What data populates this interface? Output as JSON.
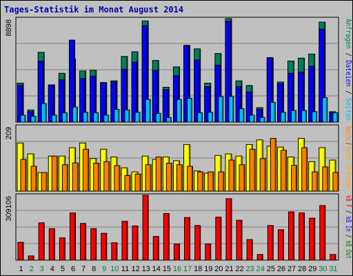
{
  "title": "Tages-Statistik im Monat August 2014",
  "colors": {
    "anfragen": "#00805c",
    "dateien": "#0000ff",
    "seiten": "#00c0ff",
    "rechner": "#ffff00",
    "besuche": "#ff8000",
    "kbin": "#ff0000",
    "kbout": "#00c000",
    "panel_bg": "#c0c0c0",
    "weekend": "#008040",
    "weekday": "#000000"
  },
  "side_labels": {
    "top": [
      {
        "text": "Anfragen",
        "color": "#00805c"
      },
      {
        "text": " / ",
        "color": "#000000"
      },
      {
        "text": "Dateien",
        "color": "#0000ff"
      },
      {
        "text": " / ",
        "color": "#000000"
      },
      {
        "text": "Seiten",
        "color": "#00c0ff"
      }
    ],
    "middle": [
      {
        "text": "Besuche",
        "color": "#ff8000"
      },
      {
        "text": " / ",
        "color": "#000000"
      },
      {
        "text": "Rechner (IP-Adressen)",
        "color": "#ffa500"
      }
    ],
    "bottom": [
      {
        "text": "kB F",
        "color": "#ff0000"
      },
      {
        "text": " / ",
        "color": "#000000"
      },
      {
        "text": "kB In",
        "color": "#0000ff"
      },
      {
        "text": " / ",
        "color": "#000000"
      },
      {
        "text": "kB Out",
        "color": "#008000"
      }
    ]
  },
  "chart_data": {
    "type": "bar",
    "categories": [
      "1",
      "2",
      "3",
      "4",
      "5",
      "6",
      "7",
      "8",
      "9",
      "10",
      "11",
      "12",
      "13",
      "14",
      "15",
      "16",
      "17",
      "18",
      "19",
      "20",
      "21",
      "22",
      "23",
      "24",
      "25",
      "26",
      "27",
      "28",
      "29",
      "30",
      "31"
    ],
    "weekend_days": [
      "2",
      "3",
      "9",
      "10",
      "16",
      "17",
      "23",
      "24",
      "30",
      "31"
    ],
    "panels": [
      {
        "id": "hits",
        "ymax_label": "8898",
        "ymax": 8898,
        "series": [
          {
            "name": "Anfragen",
            "values": [
              3350,
              1050,
              6000,
              3200,
              4200,
              5400,
              4400,
              4450,
              3400,
              3550,
              5650,
              6050,
              8700,
              5300,
              3000,
              4750,
              6600,
              6300,
              3350,
              5900,
              8898,
              3550,
              3150,
              1250,
              5500,
              3450,
              5250,
              5500,
              5850,
              8600,
              900
            ]
          },
          {
            "name": "Dateien",
            "values": [
              3150,
              900,
              5250,
              3150,
              3650,
              7050,
              3750,
              3950,
              3400,
              3450,
              4550,
              5150,
              8300,
              4450,
              2800,
              4000,
              6550,
              5350,
              3050,
              4900,
              8650,
              3050,
              2600,
              1100,
              5550,
              3300,
              4200,
              4300,
              4800,
              8000,
              800
            ]
          },
          {
            "name": "Seiten",
            "values": [
              600,
              500,
              1600,
              600,
              800,
              1300,
              850,
              800,
              600,
              1100,
              1050,
              850,
              1950,
              750,
              400,
              1950,
              2050,
              800,
              850,
              2200,
              2200,
              1150,
              600,
              400,
              1700,
              850,
              1000,
              1000,
              900,
              2100,
              800
            ]
          }
        ]
      },
      {
        "id": "visits",
        "ymax_label": "209",
        "ymax": 209,
        "series": [
          {
            "name": "Rechner",
            "values": [
              155,
              120,
              60,
              113,
              113,
              140,
              155,
              105,
              135,
              110,
              75,
              62,
              113,
              102,
              110,
              98,
              150,
              65,
              58,
              115,
              120,
              113,
              150,
              165,
              145,
              142,
              110,
              170,
              95,
              140,
              100
            ]
          },
          {
            "name": "Besuche",
            "values": [
              102,
              80,
              60,
              113,
              85,
              91,
              135,
              90,
              95,
              82,
              50,
              55,
              85,
              110,
              90,
              85,
              80,
              62,
              62,
              62,
              100,
              85,
              135,
              105,
              170,
              132,
              83,
              140,
              62,
              78,
              60
            ]
          }
        ]
      },
      {
        "id": "kbytes",
        "ymax_label": "309106",
        "ymax": 309106,
        "series": [
          {
            "name": "kB F",
            "values": [
              85000,
              20000,
              178000,
              150000,
              106000,
              225000,
              175000,
              150000,
              128000,
              83000,
              185000,
              163000,
              309106,
              113000,
              222000,
              77000,
              203000,
              165000,
              77000,
              205000,
              293000,
              190000,
              98000,
              27000,
              165000,
              145000,
              230000,
              225000,
              200000,
              260000,
              27000
            ]
          }
        ]
      }
    ]
  }
}
